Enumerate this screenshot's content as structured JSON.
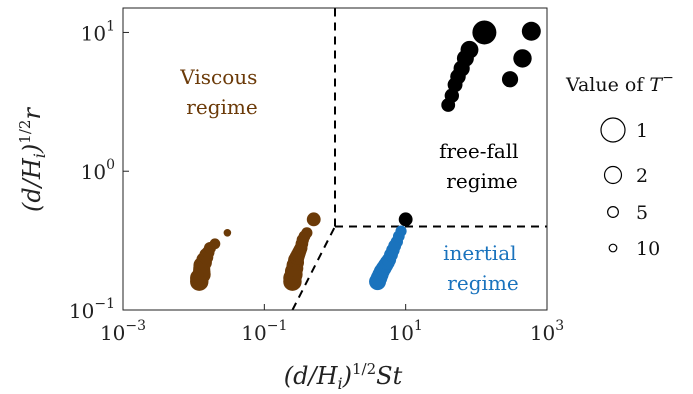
{
  "chart_data": {
    "type": "scatter",
    "x_scale": "log",
    "y_scale": "log",
    "xlim": [
      0.001,
      1000
    ],
    "ylim": [
      0.1,
      15
    ],
    "x_ticks": [
      0.001,
      0.1,
      10,
      1000
    ],
    "x_tick_labels": [
      {
        "base": "10",
        "exp": "−3"
      },
      {
        "base": "10",
        "exp": "−1"
      },
      {
        "base": "10",
        "exp": "1"
      },
      {
        "base": "10",
        "exp": "3"
      }
    ],
    "y_ticks": [
      0.1,
      1,
      10
    ],
    "y_tick_labels": [
      {
        "base": "10",
        "exp": "−1"
      },
      {
        "base": "10",
        "exp": "0"
      },
      {
        "base": "10",
        "exp": "1"
      }
    ],
    "xlabel": {
      "pre": "(d/H",
      "sub": "i",
      "mid": ")",
      "sup": "1/2",
      "post": "St"
    },
    "ylabel": {
      "pre": "(d/H",
      "sub": "i",
      "mid": ")",
      "sup": "1/2",
      "post": "r"
    },
    "colors": {
      "viscous": "#6b3a08",
      "inertial": "#1a73bd",
      "freefall": "#000000",
      "boundary": "#000000"
    },
    "boundaries": [
      {
        "name": "vertical-boundary",
        "points": [
          [
            1,
            0.4
          ],
          [
            1,
            15
          ]
        ]
      },
      {
        "name": "horizontal-boundary",
        "points": [
          [
            1,
            0.4
          ],
          [
            1000,
            0.4
          ]
        ]
      },
      {
        "name": "diagonal-boundary",
        "points": [
          [
            0.25,
            0.1
          ],
          [
            1,
            0.4
          ]
        ]
      }
    ],
    "annotations": [
      {
        "lines": [
          "Viscous",
          "regime"
        ],
        "color": "viscous"
      },
      {
        "lines": [
          "free-fall",
          "regime"
        ],
        "color": "freefall"
      },
      {
        "lines": [
          "inertial",
          "regime"
        ],
        "color": "inertial"
      }
    ],
    "series": [
      {
        "regime": "viscous",
        "points": [
          {
            "x": 0.012,
            "y": 0.16,
            "T": 1.7
          },
          {
            "x": 0.012,
            "y": 0.17,
            "T": 1.7
          },
          {
            "x": 0.013,
            "y": 0.18,
            "T": 1.8
          },
          {
            "x": 0.013,
            "y": 0.19,
            "T": 1.9
          },
          {
            "x": 0.013,
            "y": 0.2,
            "T": 2.0
          },
          {
            "x": 0.013,
            "y": 0.21,
            "T": 2.1
          },
          {
            "x": 0.014,
            "y": 0.22,
            "T": 2.3
          },
          {
            "x": 0.014,
            "y": 0.23,
            "T": 2.5
          },
          {
            "x": 0.015,
            "y": 0.24,
            "T": 2.8
          },
          {
            "x": 0.015,
            "y": 0.25,
            "T": 3.2
          },
          {
            "x": 0.016,
            "y": 0.26,
            "T": 3.5
          },
          {
            "x": 0.017,
            "y": 0.28,
            "T": 4.0
          },
          {
            "x": 0.02,
            "y": 0.3,
            "T": 5.0
          },
          {
            "x": 0.03,
            "y": 0.36,
            "T": 10.0
          },
          {
            "x": 0.25,
            "y": 0.16,
            "T": 1.7
          },
          {
            "x": 0.25,
            "y": 0.17,
            "T": 1.7
          },
          {
            "x": 0.26,
            "y": 0.18,
            "T": 1.8
          },
          {
            "x": 0.26,
            "y": 0.19,
            "T": 1.9
          },
          {
            "x": 0.27,
            "y": 0.2,
            "T": 2.0
          },
          {
            "x": 0.27,
            "y": 0.21,
            "T": 2.1
          },
          {
            "x": 0.28,
            "y": 0.22,
            "T": 2.2
          },
          {
            "x": 0.28,
            "y": 0.23,
            "T": 2.4
          },
          {
            "x": 0.29,
            "y": 0.24,
            "T": 2.6
          },
          {
            "x": 0.3,
            "y": 0.25,
            "T": 2.8
          },
          {
            "x": 0.31,
            "y": 0.26,
            "T": 3.0
          },
          {
            "x": 0.32,
            "y": 0.27,
            "T": 3.2
          },
          {
            "x": 0.33,
            "y": 0.28,
            "T": 3.4
          },
          {
            "x": 0.34,
            "y": 0.3,
            "T": 3.6
          },
          {
            "x": 0.35,
            "y": 0.32,
            "T": 3.8
          },
          {
            "x": 0.37,
            "y": 0.34,
            "T": 4.2
          },
          {
            "x": 0.4,
            "y": 0.36,
            "T": 4.6
          },
          {
            "x": 0.5,
            "y": 0.45,
            "T": 3.0
          }
        ]
      },
      {
        "regime": "inertial",
        "points": [
          {
            "x": 4.0,
            "y": 0.16,
            "T": 2.0
          },
          {
            "x": 4.2,
            "y": 0.17,
            "T": 2.1
          },
          {
            "x": 4.4,
            "y": 0.18,
            "T": 2.2
          },
          {
            "x": 4.6,
            "y": 0.19,
            "T": 2.3
          },
          {
            "x": 4.9,
            "y": 0.2,
            "T": 2.4
          },
          {
            "x": 5.2,
            "y": 0.21,
            "T": 2.5
          },
          {
            "x": 5.5,
            "y": 0.22,
            "T": 2.6
          },
          {
            "x": 5.8,
            "y": 0.23,
            "T": 2.8
          },
          {
            "x": 6.2,
            "y": 0.25,
            "T": 3.0
          },
          {
            "x": 6.6,
            "y": 0.27,
            "T": 3.2
          },
          {
            "x": 7.0,
            "y": 0.29,
            "T": 3.5
          },
          {
            "x": 7.5,
            "y": 0.31,
            "T": 3.8
          },
          {
            "x": 8.0,
            "y": 0.34,
            "T": 4.2
          },
          {
            "x": 8.6,
            "y": 0.37,
            "T": 4.6
          }
        ]
      },
      {
        "regime": "freefall",
        "points": [
          {
            "x": 10,
            "y": 0.45,
            "T": 3.0
          },
          {
            "x": 40,
            "y": 3.0,
            "T": 3.0
          },
          {
            "x": 45,
            "y": 3.5,
            "T": 2.8
          },
          {
            "x": 50,
            "y": 4.2,
            "T": 2.6
          },
          {
            "x": 55,
            "y": 4.8,
            "T": 2.4
          },
          {
            "x": 62,
            "y": 5.5,
            "T": 2.2
          },
          {
            "x": 70,
            "y": 6.5,
            "T": 2.0
          },
          {
            "x": 80,
            "y": 7.5,
            "T": 1.8
          },
          {
            "x": 130,
            "y": 10,
            "T": 1.0
          },
          {
            "x": 300,
            "y": 4.6,
            "T": 2.2
          },
          {
            "x": 450,
            "y": 6.5,
            "T": 1.7
          },
          {
            "x": 600,
            "y": 10.2,
            "T": 1.6
          }
        ]
      }
    ],
    "legend": {
      "title": {
        "pre": "Value of ",
        "var": "T",
        "sup": "−"
      },
      "entries": [
        {
          "label": "1",
          "T": 1
        },
        {
          "label": "2",
          "T": 2
        },
        {
          "label": "5",
          "T": 5
        },
        {
          "label": "10",
          "T": 10
        }
      ]
    }
  }
}
